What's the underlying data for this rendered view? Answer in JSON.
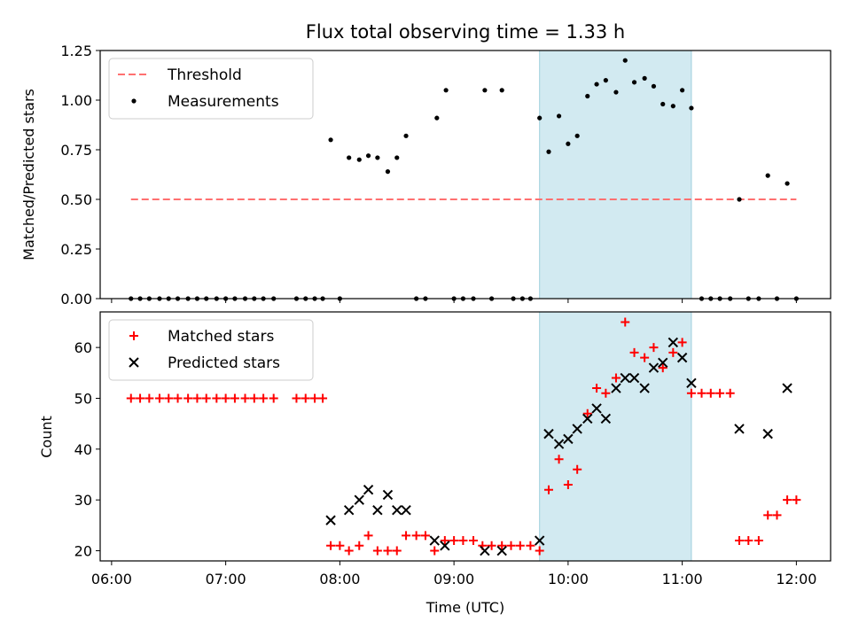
{
  "chart_data": {
    "title": "Flux total observing time = 1.33 h",
    "xlabel": "Time (UTC)",
    "xlim_hours": [
      5.9,
      12.3
    ],
    "xticks": [
      {
        "h": 6,
        "label": "06:00"
      },
      {
        "h": 7,
        "label": "07:00"
      },
      {
        "h": 8,
        "label": "08:00"
      },
      {
        "h": 9,
        "label": "09:00"
      },
      {
        "h": 10,
        "label": "10:00"
      },
      {
        "h": 11,
        "label": "11:00"
      },
      {
        "h": 12,
        "label": "12:00"
      }
    ],
    "highlight_span_hours": [
      9.75,
      11.08
    ],
    "highlight_color": "#add8e6",
    "panels": [
      {
        "type": "scatter",
        "ylabel": "Matched/Predicted stars",
        "ylim": [
          0,
          1.25
        ],
        "yticks": [
          {
            "v": 0.0,
            "label": "0.00"
          },
          {
            "v": 0.25,
            "label": "0.25"
          },
          {
            "v": 0.5,
            "label": "0.50"
          },
          {
            "v": 0.75,
            "label": "0.75"
          },
          {
            "v": 1.0,
            "label": "1.00"
          },
          {
            "v": 1.25,
            "label": "1.25"
          }
        ],
        "legend_position": "top-left",
        "threshold": {
          "name": "Threshold",
          "value": 0.5,
          "x_range": [
            6.17,
            12.0
          ],
          "color": "#ff7070"
        },
        "series": [
          {
            "name": "Measurements",
            "marker": "dot",
            "color": "#000000",
            "points": [
              [
                6.17,
                0
              ],
              [
                6.25,
                0
              ],
              [
                6.33,
                0
              ],
              [
                6.42,
                0
              ],
              [
                6.5,
                0
              ],
              [
                6.58,
                0
              ],
              [
                6.67,
                0
              ],
              [
                6.75,
                0
              ],
              [
                6.83,
                0
              ],
              [
                6.92,
                0
              ],
              [
                7.0,
                0
              ],
              [
                7.08,
                0
              ],
              [
                7.17,
                0
              ],
              [
                7.25,
                0
              ],
              [
                7.33,
                0
              ],
              [
                7.42,
                0
              ],
              [
                7.62,
                0
              ],
              [
                7.7,
                0
              ],
              [
                7.78,
                0
              ],
              [
                7.85,
                0
              ],
              [
                7.92,
                0.8
              ],
              [
                8.0,
                0
              ],
              [
                8.08,
                0.71
              ],
              [
                8.17,
                0.7
              ],
              [
                8.25,
                0.72
              ],
              [
                8.33,
                0.71
              ],
              [
                8.42,
                0.64
              ],
              [
                8.5,
                0.71
              ],
              [
                8.58,
                0.82
              ],
              [
                8.67,
                0
              ],
              [
                8.75,
                0
              ],
              [
                8.85,
                0.91
              ],
              [
                8.93,
                1.05
              ],
              [
                9.0,
                0
              ],
              [
                9.08,
                0
              ],
              [
                9.17,
                0
              ],
              [
                9.27,
                1.05
              ],
              [
                9.33,
                0
              ],
              [
                9.42,
                1.05
              ],
              [
                9.52,
                0
              ],
              [
                9.6,
                0
              ],
              [
                9.67,
                0
              ],
              [
                9.75,
                0.91
              ],
              [
                9.83,
                0.74
              ],
              [
                9.92,
                0.92
              ],
              [
                10.0,
                0.78
              ],
              [
                10.08,
                0.82
              ],
              [
                10.17,
                1.02
              ],
              [
                10.25,
                1.08
              ],
              [
                10.33,
                1.1
              ],
              [
                10.42,
                1.04
              ],
              [
                10.5,
                1.2
              ],
              [
                10.58,
                1.09
              ],
              [
                10.67,
                1.11
              ],
              [
                10.75,
                1.07
              ],
              [
                10.83,
                0.98
              ],
              [
                10.92,
                0.97
              ],
              [
                11.0,
                1.05
              ],
              [
                11.08,
                0.96
              ],
              [
                11.17,
                0
              ],
              [
                11.25,
                0
              ],
              [
                11.33,
                0
              ],
              [
                11.42,
                0
              ],
              [
                11.5,
                0.5
              ],
              [
                11.58,
                0
              ],
              [
                11.67,
                0
              ],
              [
                11.75,
                0.62
              ],
              [
                11.83,
                0
              ],
              [
                11.92,
                0.58
              ],
              [
                12.0,
                0
              ]
            ]
          }
        ]
      },
      {
        "type": "scatter",
        "ylabel": "Count",
        "ylim": [
          18,
          67
        ],
        "yticks": [
          {
            "v": 20,
            "label": "20"
          },
          {
            "v": 30,
            "label": "30"
          },
          {
            "v": 40,
            "label": "40"
          },
          {
            "v": 50,
            "label": "50"
          },
          {
            "v": 60,
            "label": "60"
          }
        ],
        "legend_position": "top-left",
        "series": [
          {
            "name": "Matched stars",
            "marker": "plus",
            "color": "#ff0000",
            "points": [
              [
                6.17,
                50
              ],
              [
                6.25,
                50
              ],
              [
                6.33,
                50
              ],
              [
                6.42,
                50
              ],
              [
                6.5,
                50
              ],
              [
                6.58,
                50
              ],
              [
                6.67,
                50
              ],
              [
                6.75,
                50
              ],
              [
                6.83,
                50
              ],
              [
                6.92,
                50
              ],
              [
                7.0,
                50
              ],
              [
                7.08,
                50
              ],
              [
                7.17,
                50
              ],
              [
                7.25,
                50
              ],
              [
                7.33,
                50
              ],
              [
                7.42,
                50
              ],
              [
                7.62,
                50
              ],
              [
                7.7,
                50
              ],
              [
                7.78,
                50
              ],
              [
                7.85,
                50
              ],
              [
                7.92,
                21
              ],
              [
                8.0,
                21
              ],
              [
                8.08,
                20
              ],
              [
                8.17,
                21
              ],
              [
                8.25,
                23
              ],
              [
                8.33,
                20
              ],
              [
                8.42,
                20
              ],
              [
                8.5,
                20
              ],
              [
                8.58,
                23
              ],
              [
                8.67,
                23
              ],
              [
                8.75,
                23
              ],
              [
                8.83,
                20
              ],
              [
                8.92,
                22
              ],
              [
                9.0,
                22
              ],
              [
                9.08,
                22
              ],
              [
                9.17,
                22
              ],
              [
                9.25,
                21
              ],
              [
                9.33,
                21
              ],
              [
                9.42,
                21
              ],
              [
                9.5,
                21
              ],
              [
                9.58,
                21
              ],
              [
                9.67,
                21
              ],
              [
                9.75,
                20
              ],
              [
                9.83,
                32
              ],
              [
                9.92,
                38
              ],
              [
                10.0,
                33
              ],
              [
                10.08,
                36
              ],
              [
                10.17,
                47
              ],
              [
                10.25,
                52
              ],
              [
                10.33,
                51
              ],
              [
                10.42,
                54
              ],
              [
                10.5,
                65
              ],
              [
                10.58,
                59
              ],
              [
                10.67,
                58
              ],
              [
                10.75,
                60
              ],
              [
                10.83,
                56
              ],
              [
                10.92,
                59
              ],
              [
                11.0,
                61
              ],
              [
                11.08,
                51
              ],
              [
                11.17,
                51
              ],
              [
                11.25,
                51
              ],
              [
                11.33,
                51
              ],
              [
                11.42,
                51
              ],
              [
                11.5,
                22
              ],
              [
                11.58,
                22
              ],
              [
                11.67,
                22
              ],
              [
                11.75,
                27
              ],
              [
                11.83,
                27
              ],
              [
                11.92,
                30
              ],
              [
                12.0,
                30
              ]
            ]
          },
          {
            "name": "Predicted stars",
            "marker": "x",
            "color": "#000000",
            "points": [
              [
                7.92,
                26
              ],
              [
                8.08,
                28
              ],
              [
                8.17,
                30
              ],
              [
                8.25,
                32
              ],
              [
                8.33,
                28
              ],
              [
                8.42,
                31
              ],
              [
                8.5,
                28
              ],
              [
                8.58,
                28
              ],
              [
                8.83,
                22
              ],
              [
                8.92,
                21
              ],
              [
                9.27,
                20
              ],
              [
                9.42,
                20
              ],
              [
                9.75,
                22
              ],
              [
                9.83,
                43
              ],
              [
                9.92,
                41
              ],
              [
                10.0,
                42
              ],
              [
                10.08,
                44
              ],
              [
                10.17,
                46
              ],
              [
                10.25,
                48
              ],
              [
                10.33,
                46
              ],
              [
                10.42,
                52
              ],
              [
                10.5,
                54
              ],
              [
                10.58,
                54
              ],
              [
                10.67,
                52
              ],
              [
                10.75,
                56
              ],
              [
                10.83,
                57
              ],
              [
                10.92,
                61
              ],
              [
                11.0,
                58
              ],
              [
                11.08,
                53
              ],
              [
                11.5,
                44
              ],
              [
                11.75,
                43
              ],
              [
                11.92,
                52
              ]
            ]
          }
        ]
      }
    ]
  }
}
